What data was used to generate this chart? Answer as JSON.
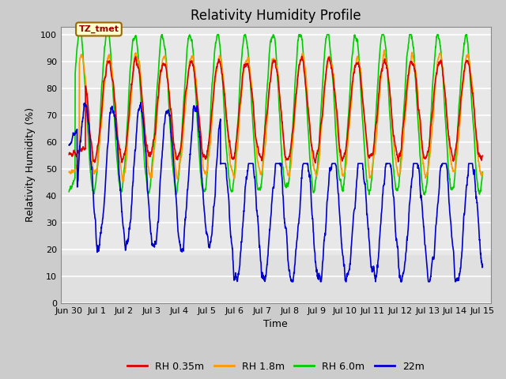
{
  "title": "Relativity Humidity Profile",
  "xlabel": "Time",
  "ylabel": "Relativity Humidity (%)",
  "annotation_text": "TZ_tmet",
  "annotation_bg": "#ffffcc",
  "annotation_border": "#996600",
  "annotation_text_color": "#990000",
  "xlim_start": -0.3,
  "xlim_end": 15.3,
  "ylim": [
    0,
    103
  ],
  "yticks": [
    0,
    10,
    20,
    30,
    40,
    50,
    60,
    70,
    80,
    90,
    100
  ],
  "xtick_labels": [
    "Jun 30",
    "Jul 1",
    "Jul 2",
    "Jul 3",
    "Jul 4",
    "Jul 5",
    "Jul 6",
    "Jul 7",
    "Jul 8",
    "Jul 9",
    "Jul 10",
    "Jul 11",
    "Jul 12",
    "Jul 13",
    "Jul 14",
    "Jul 15"
  ],
  "xtick_positions": [
    0,
    1,
    2,
    3,
    4,
    5,
    6,
    7,
    8,
    9,
    10,
    11,
    12,
    13,
    14,
    15
  ],
  "colors": {
    "RH035": "#dd0000",
    "RH18": "#ff9900",
    "RH60": "#00cc00",
    "RH22": "#0000cc"
  },
  "legend_labels": [
    "RH 0.35m",
    "RH 1.8m",
    "RH 6.0m",
    "22m"
  ],
  "fig_bg": "#cccccc",
  "plot_bg": "#e0e0e0",
  "shade_bg": "#d0d0d0",
  "grid_color": "#ffffff",
  "title_fontsize": 12,
  "label_fontsize": 9,
  "tick_fontsize": 8,
  "legend_fontsize": 9
}
